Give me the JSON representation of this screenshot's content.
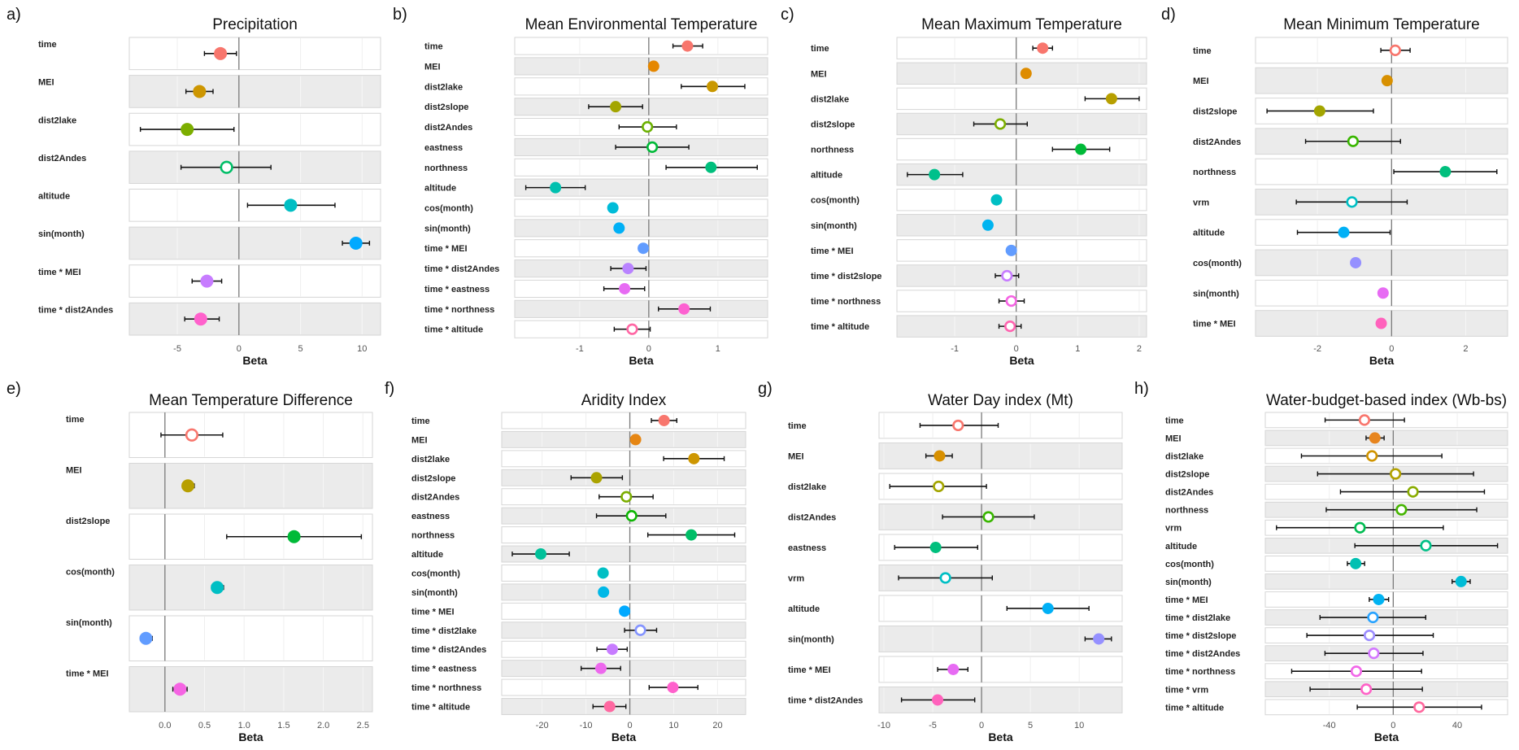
{
  "chart_data": [
    {
      "type": "scatter",
      "letter": "a)",
      "title": "Precipitation",
      "xlabel": "Beta",
      "xlim": [
        -8.9,
        11.5
      ],
      "ticks": [
        -5,
        0,
        5,
        10
      ],
      "tick_labels": [
        "-5",
        "0",
        "5",
        "10"
      ],
      "rows": [
        {
          "term": "time",
          "beta": -1.5,
          "lo": -2.8,
          "hi": -0.2,
          "filled": true
        },
        {
          "term": "MEI",
          "beta": -3.2,
          "lo": -4.3,
          "hi": -2.1,
          "filled": true
        },
        {
          "term": "dist2lake",
          "beta": -4.2,
          "lo": -8.0,
          "hi": -0.4,
          "filled": true
        },
        {
          "term": "dist2Andes",
          "beta": -1.0,
          "lo": -4.7,
          "hi": 2.6,
          "filled": false
        },
        {
          "term": "altitude",
          "beta": 4.2,
          "lo": 0.7,
          "hi": 7.8,
          "filled": true
        },
        {
          "term": "sin(month)",
          "beta": 9.5,
          "lo": 8.4,
          "hi": 10.6,
          "filled": true
        },
        {
          "term": "time * MEI",
          "beta": -2.6,
          "lo": -3.8,
          "hi": -1.4,
          "filled": true
        },
        {
          "term": "time * dist2Andes",
          "beta": -3.1,
          "lo": -4.4,
          "hi": -1.6,
          "filled": true
        }
      ]
    },
    {
      "type": "scatter",
      "letter": "b)",
      "title": "Mean Environmental Temperature",
      "xlabel": "Beta",
      "xlim": [
        -1.94,
        1.72
      ],
      "ticks": [
        -1,
        0,
        1
      ],
      "tick_labels": [
        "-1",
        "0",
        "1"
      ],
      "rows": [
        {
          "term": "time",
          "beta": 0.56,
          "lo": 0.35,
          "hi": 0.78,
          "filled": true
        },
        {
          "term": "MEI",
          "beta": 0.07,
          "lo": null,
          "hi": null,
          "filled": true
        },
        {
          "term": "dist2lake",
          "beta": 0.92,
          "lo": 0.47,
          "hi": 1.39,
          "filled": true
        },
        {
          "term": "dist2slope",
          "beta": -0.48,
          "lo": -0.87,
          "hi": -0.09,
          "filled": true
        },
        {
          "term": "dist2Andes",
          "beta": -0.02,
          "lo": -0.43,
          "hi": 0.4,
          "filled": false
        },
        {
          "term": "eastness",
          "beta": 0.05,
          "lo": -0.48,
          "hi": 0.58,
          "filled": false
        },
        {
          "term": "northness",
          "beta": 0.9,
          "lo": 0.25,
          "hi": 1.57,
          "filled": true
        },
        {
          "term": "altitude",
          "beta": -1.35,
          "lo": -1.78,
          "hi": -0.92,
          "filled": true
        },
        {
          "term": "cos(month)",
          "beta": -0.52,
          "lo": null,
          "hi": null,
          "filled": true
        },
        {
          "term": "sin(month)",
          "beta": -0.43,
          "lo": null,
          "hi": null,
          "filled": true
        },
        {
          "term": "time * MEI",
          "beta": -0.08,
          "lo": null,
          "hi": null,
          "filled": true
        },
        {
          "term": "time * dist2Andes",
          "beta": -0.3,
          "lo": -0.55,
          "hi": -0.04,
          "filled": true
        },
        {
          "term": "time * eastness",
          "beta": -0.35,
          "lo": -0.65,
          "hi": -0.06,
          "filled": true
        },
        {
          "term": "time * northness",
          "beta": 0.51,
          "lo": 0.14,
          "hi": 0.89,
          "filled": true
        },
        {
          "term": "time * altitude",
          "beta": -0.24,
          "lo": -0.5,
          "hi": 0.02,
          "filled": false
        }
      ]
    },
    {
      "type": "scatter",
      "letter": "c)",
      "title": "Mean Maximum Temperature",
      "xlabel": "Beta",
      "xlim": [
        -1.94,
        2.12
      ],
      "ticks": [
        -1,
        0,
        1,
        2
      ],
      "tick_labels": [
        "-1",
        "0",
        "1",
        "2"
      ],
      "rows": [
        {
          "term": "time",
          "beta": 0.43,
          "lo": 0.27,
          "hi": 0.59,
          "filled": true
        },
        {
          "term": "MEI",
          "beta": 0.16,
          "lo": null,
          "hi": null,
          "filled": true
        },
        {
          "term": "dist2lake",
          "beta": 1.55,
          "lo": 1.12,
          "hi": 2.0,
          "filled": true
        },
        {
          "term": "dist2slope",
          "beta": -0.26,
          "lo": -0.69,
          "hi": 0.18,
          "filled": false
        },
        {
          "term": "northness",
          "beta": 1.05,
          "lo": 0.59,
          "hi": 1.52,
          "filled": true
        },
        {
          "term": "altitude",
          "beta": -1.33,
          "lo": -1.77,
          "hi": -0.87,
          "filled": true
        },
        {
          "term": "cos(month)",
          "beta": -0.32,
          "lo": null,
          "hi": null,
          "filled": true
        },
        {
          "term": "sin(month)",
          "beta": -0.46,
          "lo": null,
          "hi": null,
          "filled": true
        },
        {
          "term": "time * MEI",
          "beta": -0.08,
          "lo": null,
          "hi": null,
          "filled": true
        },
        {
          "term": "time * dist2slope",
          "beta": -0.15,
          "lo": -0.34,
          "hi": 0.04,
          "filled": false
        },
        {
          "term": "time * northness",
          "beta": -0.08,
          "lo": -0.28,
          "hi": 0.13,
          "filled": false
        },
        {
          "term": "time * altitude",
          "beta": -0.1,
          "lo": -0.28,
          "hi": 0.08,
          "filled": false
        }
      ]
    },
    {
      "type": "scatter",
      "letter": "d)",
      "title": "Mean Minimum Temperature",
      "xlabel": "Beta",
      "xlim": [
        -3.67,
        3.13
      ],
      "ticks": [
        -2,
        0,
        2
      ],
      "tick_labels": [
        "-2",
        "0",
        "2"
      ],
      "rows": [
        {
          "term": "time",
          "beta": 0.1,
          "lo": -0.29,
          "hi": 0.5,
          "filled": false
        },
        {
          "term": "MEI",
          "beta": -0.12,
          "lo": null,
          "hi": null,
          "filled": true
        },
        {
          "term": "dist2slope",
          "beta": -1.94,
          "lo": -3.36,
          "hi": -0.49,
          "filled": true
        },
        {
          "term": "dist2Andes",
          "beta": -1.04,
          "lo": -2.32,
          "hi": 0.24,
          "filled": false
        },
        {
          "term": "northness",
          "beta": 1.45,
          "lo": 0.06,
          "hi": 2.84,
          "filled": true
        },
        {
          "term": "vrm",
          "beta": -1.07,
          "lo": -2.57,
          "hi": 0.42,
          "filled": false
        },
        {
          "term": "altitude",
          "beta": -1.29,
          "lo": -2.54,
          "hi": -0.04,
          "filled": true
        },
        {
          "term": "cos(month)",
          "beta": -0.97,
          "lo": null,
          "hi": null,
          "filled": true
        },
        {
          "term": "sin(month)",
          "beta": -0.23,
          "lo": null,
          "hi": null,
          "filled": true
        },
        {
          "term": "time * MEI",
          "beta": -0.28,
          "lo": null,
          "hi": null,
          "filled": true
        }
      ]
    },
    {
      "type": "scatter",
      "letter": "e)",
      "title": "Mean Temperature Difference",
      "xlabel": "Beta",
      "xlim": [
        -0.45,
        2.62
      ],
      "ticks": [
        0,
        0.5,
        1,
        1.5,
        2,
        2.5
      ],
      "tick_labels": [
        "0.0",
        "0.5",
        "1.0",
        "1.5",
        "2.0",
        "2.5"
      ],
      "rows": [
        {
          "term": "time",
          "beta": 0.34,
          "lo": -0.05,
          "hi": 0.73,
          "filled": false
        },
        {
          "term": "MEI",
          "beta": 0.29,
          "lo": 0.22,
          "hi": 0.37,
          "filled": true
        },
        {
          "term": "dist2slope",
          "beta": 1.63,
          "lo": 0.78,
          "hi": 2.48,
          "filled": true
        },
        {
          "term": "cos(month)",
          "beta": 0.66,
          "lo": 0.59,
          "hi": 0.74,
          "filled": true
        },
        {
          "term": "sin(month)",
          "beta": -0.24,
          "lo": -0.31,
          "hi": -0.16,
          "filled": true
        },
        {
          "term": "time * MEI",
          "beta": 0.19,
          "lo": 0.1,
          "hi": 0.28,
          "filled": true
        }
      ]
    },
    {
      "type": "scatter",
      "letter": "f)",
      "title": "Aridity Index",
      "xlabel": "Beta",
      "xlim": [
        -29.2,
        26.4
      ],
      "ticks": [
        -20,
        -10,
        0,
        10,
        20
      ],
      "tick_labels": [
        "-20",
        "-10",
        "0",
        "10",
        "20"
      ],
      "rows": [
        {
          "term": "time",
          "beta": 7.8,
          "lo": 4.9,
          "hi": 10.7,
          "filled": true
        },
        {
          "term": "MEI",
          "beta": 1.3,
          "lo": null,
          "hi": null,
          "filled": true
        },
        {
          "term": "dist2lake",
          "beta": 14.6,
          "lo": 7.7,
          "hi": 21.5,
          "filled": true
        },
        {
          "term": "dist2slope",
          "beta": -7.6,
          "lo": -13.4,
          "hi": -1.7,
          "filled": true
        },
        {
          "term": "dist2Andes",
          "beta": -0.8,
          "lo": -7.0,
          "hi": 5.3,
          "filled": false
        },
        {
          "term": "eastness",
          "beta": 0.4,
          "lo": -7.6,
          "hi": 8.2,
          "filled": false
        },
        {
          "term": "northness",
          "beta": 14.0,
          "lo": 4.1,
          "hi": 23.9,
          "filled": true
        },
        {
          "term": "altitude",
          "beta": -20.3,
          "lo": -26.8,
          "hi": -13.8,
          "filled": true
        },
        {
          "term": "cos(month)",
          "beta": -6.1,
          "lo": null,
          "hi": null,
          "filled": true
        },
        {
          "term": "sin(month)",
          "beta": -6.0,
          "lo": null,
          "hi": null,
          "filled": true
        },
        {
          "term": "time * MEI",
          "beta": -1.2,
          "lo": null,
          "hi": null,
          "filled": true
        },
        {
          "term": "time * dist2lake",
          "beta": 2.4,
          "lo": -1.2,
          "hi": 6.1,
          "filled": false
        },
        {
          "term": "time * dist2Andes",
          "beta": -4.0,
          "lo": -7.5,
          "hi": -0.6,
          "filled": true
        },
        {
          "term": "time * eastness",
          "beta": -6.6,
          "lo": -11.1,
          "hi": -2.1,
          "filled": true
        },
        {
          "term": "time * northness",
          "beta": 9.8,
          "lo": 4.4,
          "hi": 15.5,
          "filled": true
        },
        {
          "term": "time * altitude",
          "beta": -4.6,
          "lo": -8.4,
          "hi": -0.9,
          "filled": true
        }
      ]
    },
    {
      "type": "scatter",
      "letter": "g)",
      "title": "Water Day index (Mt)",
      "xlabel": "Beta",
      "xlim": [
        -10.5,
        14.4
      ],
      "ticks": [
        -10,
        -5,
        0,
        5,
        10
      ],
      "tick_labels": [
        "-10",
        "-5",
        "0",
        "5",
        "10"
      ],
      "rows": [
        {
          "term": "time",
          "beta": -2.4,
          "lo": -6.3,
          "hi": 1.7,
          "filled": false
        },
        {
          "term": "MEI",
          "beta": -4.3,
          "lo": -5.7,
          "hi": -3.0,
          "filled": true
        },
        {
          "term": "dist2lake",
          "beta": -4.4,
          "lo": -9.4,
          "hi": 0.5,
          "filled": false
        },
        {
          "term": "dist2Andes",
          "beta": 0.7,
          "lo": -4.0,
          "hi": 5.4,
          "filled": false
        },
        {
          "term": "eastness",
          "beta": -4.7,
          "lo": -8.9,
          "hi": -0.4,
          "filled": true
        },
        {
          "term": "vrm",
          "beta": -3.7,
          "lo": -8.5,
          "hi": 1.1,
          "filled": false
        },
        {
          "term": "altitude",
          "beta": 6.8,
          "lo": 2.6,
          "hi": 11.0,
          "filled": true
        },
        {
          "term": "sin(month)",
          "beta": 12.0,
          "lo": 10.6,
          "hi": 13.3,
          "filled": true
        },
        {
          "term": "time * MEI",
          "beta": -2.9,
          "lo": -4.5,
          "hi": -1.4,
          "filled": true
        },
        {
          "term": "time * dist2Andes",
          "beta": -4.5,
          "lo": -8.2,
          "hi": -0.7,
          "filled": true
        }
      ]
    },
    {
      "type": "scatter",
      "letter": "h)",
      "title": "Water-budget-based index (Wb-bs)",
      "xlabel": "Beta",
      "xlim": [
        -80,
        71.5
      ],
      "ticks": [
        -40,
        0,
        40
      ],
      "tick_labels": [
        "-40",
        "0",
        "40"
      ],
      "rows": [
        {
          "term": "time",
          "beta": -18,
          "lo": -42.6,
          "hi": 7,
          "filled": false
        },
        {
          "term": "MEI",
          "beta": -11.5,
          "lo": -17,
          "hi": -5.7,
          "filled": true
        },
        {
          "term": "dist2lake",
          "beta": -13.3,
          "lo": -57.4,
          "hi": 30.4,
          "filled": false
        },
        {
          "term": "dist2slope",
          "beta": 1.4,
          "lo": -47.3,
          "hi": 50.2,
          "filled": false
        },
        {
          "term": "dist2Andes",
          "beta": 12.3,
          "lo": -33,
          "hi": 57,
          "filled": false
        },
        {
          "term": "northness",
          "beta": 5.1,
          "lo": -41.9,
          "hi": 52.2,
          "filled": false
        },
        {
          "term": "vrm",
          "beta": -20.8,
          "lo": -73,
          "hi": 31.3,
          "filled": false
        },
        {
          "term": "altitude",
          "beta": 20.4,
          "lo": -24,
          "hi": 65.2,
          "filled": false
        },
        {
          "term": "cos(month)",
          "beta": -23.5,
          "lo": -28.7,
          "hi": -17.9,
          "filled": true
        },
        {
          "term": "sin(month)",
          "beta": 42.4,
          "lo": 36.8,
          "hi": 48.1,
          "filled": true
        },
        {
          "term": "time * MEI",
          "beta": -9.1,
          "lo": -15,
          "hi": -2.9,
          "filled": true
        },
        {
          "term": "time * dist2lake",
          "beta": -12.7,
          "lo": -45.8,
          "hi": 20.3,
          "filled": false
        },
        {
          "term": "time * dist2slope",
          "beta": -14.9,
          "lo": -54,
          "hi": 25,
          "filled": false
        },
        {
          "term": "time * dist2Andes",
          "beta": -12.2,
          "lo": -42.7,
          "hi": 18.6,
          "filled": false
        },
        {
          "term": "time * northness",
          "beta": -23.1,
          "lo": -63.5,
          "hi": 17.7,
          "filled": false
        },
        {
          "term": "time * vrm",
          "beta": -16.9,
          "lo": -52,
          "hi": 18.2,
          "filled": false
        },
        {
          "term": "time * altitude",
          "beta": 16.2,
          "lo": -22.5,
          "hi": 55.2,
          "filled": false
        }
      ]
    }
  ]
}
